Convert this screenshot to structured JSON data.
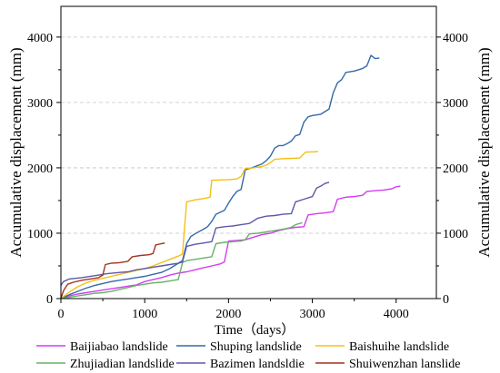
{
  "chart_data": {
    "type": "line",
    "xlabel": "Time（days）",
    "ylabel": "Accumulative displacement (mm)",
    "ylabel_right": "Accumulative displacement (mm)",
    "xlim": [
      0,
      4480
    ],
    "ylim": [
      0,
      4470
    ],
    "xticks": [
      0,
      1000,
      2000,
      3000,
      4000
    ],
    "yticks": [
      0,
      1000,
      2000,
      3000,
      4000
    ],
    "grid": "horizontal",
    "legend_position": "bottom",
    "series": [
      {
        "name": "Baijiabao landslide",
        "color": "#d43cf0",
        "points": [
          [
            0,
            0
          ],
          [
            100,
            40
          ],
          [
            200,
            70
          ],
          [
            300,
            90
          ],
          [
            400,
            110
          ],
          [
            500,
            130
          ],
          [
            600,
            150
          ],
          [
            700,
            170
          ],
          [
            800,
            190
          ],
          [
            900,
            210
          ],
          [
            1000,
            260
          ],
          [
            1100,
            290
          ],
          [
            1200,
            320
          ],
          [
            1300,
            360
          ],
          [
            1400,
            390
          ],
          [
            1500,
            410
          ],
          [
            1600,
            440
          ],
          [
            1700,
            470
          ],
          [
            1800,
            500
          ],
          [
            1900,
            530
          ],
          [
            1950,
            560
          ],
          [
            2000,
            880
          ],
          [
            2100,
            890
          ],
          [
            2200,
            900
          ],
          [
            2300,
            940
          ],
          [
            2400,
            980
          ],
          [
            2500,
            1000
          ],
          [
            2600,
            1040
          ],
          [
            2700,
            1070
          ],
          [
            2800,
            1090
          ],
          [
            2900,
            1100
          ],
          [
            2950,
            1280
          ],
          [
            3050,
            1300
          ],
          [
            3150,
            1310
          ],
          [
            3250,
            1330
          ],
          [
            3300,
            1520
          ],
          [
            3400,
            1550
          ],
          [
            3500,
            1560
          ],
          [
            3600,
            1580
          ],
          [
            3650,
            1640
          ],
          [
            3750,
            1650
          ],
          [
            3850,
            1660
          ],
          [
            3950,
            1680
          ],
          [
            4000,
            1710
          ],
          [
            4050,
            1720
          ]
        ]
      },
      {
        "name": "Shuping landslide",
        "color": "#336aa8",
        "points": [
          [
            0,
            0
          ],
          [
            100,
            60
          ],
          [
            200,
            110
          ],
          [
            300,
            160
          ],
          [
            400,
            200
          ],
          [
            500,
            230
          ],
          [
            600,
            260
          ],
          [
            700,
            280
          ],
          [
            800,
            300
          ],
          [
            900,
            320
          ],
          [
            1000,
            340
          ],
          [
            1100,
            370
          ],
          [
            1200,
            400
          ],
          [
            1300,
            460
          ],
          [
            1400,
            540
          ],
          [
            1450,
            580
          ],
          [
            1500,
            840
          ],
          [
            1550,
            950
          ],
          [
            1600,
            990
          ],
          [
            1700,
            1060
          ],
          [
            1750,
            1100
          ],
          [
            1800,
            1180
          ],
          [
            1850,
            1290
          ],
          [
            1950,
            1350
          ],
          [
            2000,
            1460
          ],
          [
            2050,
            1560
          ],
          [
            2100,
            1640
          ],
          [
            2150,
            1670
          ],
          [
            2200,
            1970
          ],
          [
            2300,
            2010
          ],
          [
            2400,
            2060
          ],
          [
            2450,
            2110
          ],
          [
            2500,
            2180
          ],
          [
            2550,
            2300
          ],
          [
            2600,
            2340
          ],
          [
            2650,
            2340
          ],
          [
            2700,
            2370
          ],
          [
            2750,
            2410
          ],
          [
            2800,
            2490
          ],
          [
            2850,
            2510
          ],
          [
            2900,
            2700
          ],
          [
            2950,
            2780
          ],
          [
            3000,
            2800
          ],
          [
            3100,
            2820
          ],
          [
            3200,
            2900
          ],
          [
            3250,
            3150
          ],
          [
            3300,
            3300
          ],
          [
            3350,
            3350
          ],
          [
            3400,
            3460
          ],
          [
            3500,
            3480
          ],
          [
            3600,
            3520
          ],
          [
            3650,
            3560
          ],
          [
            3700,
            3720
          ],
          [
            3750,
            3670
          ],
          [
            3800,
            3680
          ]
        ]
      },
      {
        "name": "Baishuihe landslide",
        "color": "#f5bf16",
        "points": [
          [
            0,
            0
          ],
          [
            100,
            100
          ],
          [
            200,
            180
          ],
          [
            300,
            240
          ],
          [
            400,
            280
          ],
          [
            500,
            310
          ],
          [
            600,
            340
          ],
          [
            700,
            370
          ],
          [
            800,
            400
          ],
          [
            900,
            430
          ],
          [
            1000,
            460
          ],
          [
            1100,
            500
          ],
          [
            1200,
            550
          ],
          [
            1300,
            600
          ],
          [
            1400,
            650
          ],
          [
            1450,
            680
          ],
          [
            1500,
            1480
          ],
          [
            1600,
            1510
          ],
          [
            1700,
            1530
          ],
          [
            1780,
            1550
          ],
          [
            1800,
            1810
          ],
          [
            1900,
            1815
          ],
          [
            2000,
            1820
          ],
          [
            2100,
            1830
          ],
          [
            2150,
            1870
          ],
          [
            2200,
            1990
          ],
          [
            2300,
            2000
          ],
          [
            2400,
            2020
          ],
          [
            2450,
            2040
          ],
          [
            2500,
            2080
          ],
          [
            2550,
            2130
          ],
          [
            2650,
            2140
          ],
          [
            2750,
            2145
          ],
          [
            2850,
            2150
          ],
          [
            2920,
            2240
          ],
          [
            3000,
            2245
          ],
          [
            3070,
            2250
          ]
        ]
      },
      {
        "name": "Zhujiadian landslide",
        "color": "#66b366",
        "points": [
          [
            0,
            0
          ],
          [
            100,
            20
          ],
          [
            200,
            40
          ],
          [
            300,
            60
          ],
          [
            400,
            80
          ],
          [
            500,
            90
          ],
          [
            600,
            110
          ],
          [
            700,
            140
          ],
          [
            800,
            170
          ],
          [
            900,
            200
          ],
          [
            1000,
            220
          ],
          [
            1100,
            240
          ],
          [
            1200,
            250
          ],
          [
            1300,
            270
          ],
          [
            1400,
            290
          ],
          [
            1450,
            550
          ],
          [
            1500,
            580
          ],
          [
            1600,
            600
          ],
          [
            1700,
            620
          ],
          [
            1800,
            640
          ],
          [
            1850,
            840
          ],
          [
            1950,
            860
          ],
          [
            2050,
            870
          ],
          [
            2150,
            880
          ],
          [
            2200,
            900
          ],
          [
            2250,
            990
          ],
          [
            2350,
            1000
          ],
          [
            2450,
            1020
          ],
          [
            2550,
            1040
          ],
          [
            2650,
            1060
          ],
          [
            2750,
            1090
          ],
          [
            2800,
            1130
          ],
          [
            2880,
            1160
          ]
        ]
      },
      {
        "name": "Bazimen landsldie",
        "color": "#5e58a8",
        "points": [
          [
            0,
            200
          ],
          [
            30,
            260
          ],
          [
            100,
            300
          ],
          [
            250,
            320
          ],
          [
            400,
            350
          ],
          [
            550,
            380
          ],
          [
            700,
            400
          ],
          [
            800,
            410
          ],
          [
            900,
            440
          ],
          [
            1000,
            460
          ],
          [
            1100,
            480
          ],
          [
            1200,
            500
          ],
          [
            1300,
            520
          ],
          [
            1400,
            540
          ],
          [
            1450,
            560
          ],
          [
            1500,
            800
          ],
          [
            1600,
            830
          ],
          [
            1700,
            850
          ],
          [
            1800,
            870
          ],
          [
            1850,
            1080
          ],
          [
            1950,
            1100
          ],
          [
            2050,
            1110
          ],
          [
            2150,
            1130
          ],
          [
            2250,
            1150
          ],
          [
            2350,
            1230
          ],
          [
            2450,
            1260
          ],
          [
            2550,
            1270
          ],
          [
            2650,
            1290
          ],
          [
            2750,
            1300
          ],
          [
            2800,
            1480
          ],
          [
            2900,
            1520
          ],
          [
            3000,
            1560
          ],
          [
            3050,
            1690
          ],
          [
            3100,
            1720
          ],
          [
            3150,
            1760
          ],
          [
            3200,
            1780
          ]
        ]
      },
      {
        "name": "Shuiwenzhan lanslide",
        "color": "#a0351e",
        "points": [
          [
            0,
            0
          ],
          [
            30,
            120
          ],
          [
            80,
            220
          ],
          [
            150,
            250
          ],
          [
            250,
            280
          ],
          [
            350,
            300
          ],
          [
            450,
            320
          ],
          [
            500,
            360
          ],
          [
            530,
            520
          ],
          [
            600,
            540
          ],
          [
            700,
            550
          ],
          [
            800,
            570
          ],
          [
            850,
            640
          ],
          [
            950,
            660
          ],
          [
            1050,
            670
          ],
          [
            1100,
            690
          ],
          [
            1130,
            820
          ],
          [
            1200,
            840
          ],
          [
            1240,
            850
          ]
        ]
      }
    ]
  }
}
